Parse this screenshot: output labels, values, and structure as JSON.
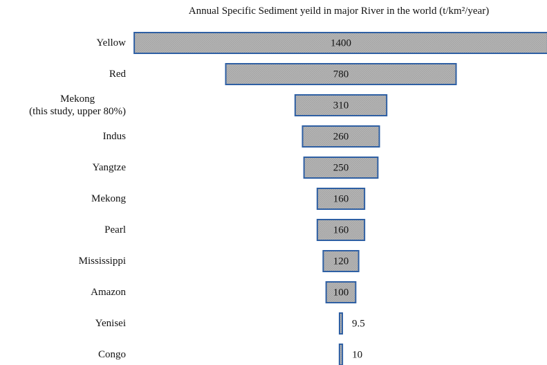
{
  "chart_data": {
    "type": "funnel-bar",
    "title": "Annual Specific Sediment yeild in major River in the world (t/km²/year)",
    "categories": [
      "Yellow",
      "Red",
      "Mekong\n(this study, upper 80%)",
      "Indus",
      "Yangtze",
      "Mekong",
      "Pearl",
      "Mississippi",
      "Amazon",
      "Yenisei",
      "Congo"
    ],
    "values": [
      1400,
      780,
      310,
      260,
      250,
      160,
      160,
      120,
      100,
      9.5,
      10
    ],
    "color": "#b4b4b4",
    "edge_color": "#2e5fa3"
  }
}
